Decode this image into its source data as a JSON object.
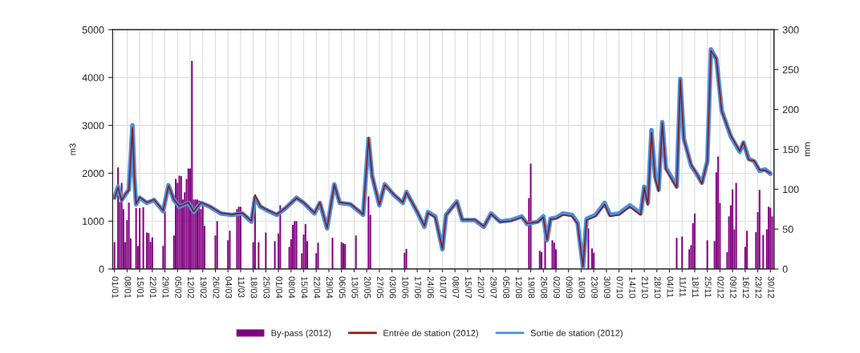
{
  "chart_data": {
    "type": "line",
    "ylabel": "m3",
    "y2label": "mm",
    "xlim": [
      "2011-12-31",
      "2013-01-01"
    ],
    "ylim": [
      0,
      5000
    ],
    "yticks": [
      0,
      1000,
      2000,
      3000,
      4000,
      5000
    ],
    "y2lim": [
      0,
      300
    ],
    "y2ticks": [
      0,
      50,
      100,
      150,
      200,
      250,
      300
    ],
    "xticks": [
      {
        "value": "2012-01-01",
        "label": "01/01"
      },
      {
        "value": "2012-01-08",
        "label": "08/01"
      },
      {
        "value": "2012-01-15",
        "label": "15/01"
      },
      {
        "value": "2012-01-22",
        "label": "22/01"
      },
      {
        "value": "2012-01-29",
        "label": "29/01"
      },
      {
        "value": "2012-02-05",
        "label": "05/02"
      },
      {
        "value": "2012-02-12",
        "label": "12/02"
      },
      {
        "value": "2012-02-19",
        "label": "19/02"
      },
      {
        "value": "2012-02-26",
        "label": "26/02"
      },
      {
        "value": "2012-03-04",
        "label": "04/03"
      },
      {
        "value": "2012-03-11",
        "label": "11/03"
      },
      {
        "value": "2012-03-18",
        "label": "18/03"
      },
      {
        "value": "2012-03-25",
        "label": "25/03"
      },
      {
        "value": "2012-04-01",
        "label": "01/04"
      },
      {
        "value": "2012-04-08",
        "label": "08/04"
      },
      {
        "value": "2012-04-15",
        "label": "15/04"
      },
      {
        "value": "2012-04-22",
        "label": "22/04"
      },
      {
        "value": "2012-04-29",
        "label": "29/04"
      },
      {
        "value": "2012-05-06",
        "label": "06/05"
      },
      {
        "value": "2012-05-13",
        "label": "13/05"
      },
      {
        "value": "2012-05-20",
        "label": "20/05"
      },
      {
        "value": "2012-05-27",
        "label": "27/05"
      },
      {
        "value": "2012-06-03",
        "label": "03/06"
      },
      {
        "value": "2012-06-10",
        "label": "10/06"
      },
      {
        "value": "2012-06-17",
        "label": "17/06"
      },
      {
        "value": "2012-06-24",
        "label": "24/06"
      },
      {
        "value": "2012-07-01",
        "label": "01/07"
      },
      {
        "value": "2012-07-08",
        "label": "08/07"
      },
      {
        "value": "2012-07-15",
        "label": "15/07"
      },
      {
        "value": "2012-07-22",
        "label": "22/07"
      },
      {
        "value": "2012-07-29",
        "label": "29/07"
      },
      {
        "value": "2012-08-05",
        "label": "05/08"
      },
      {
        "value": "2012-08-12",
        "label": "12/08"
      },
      {
        "value": "2012-08-19",
        "label": "19/08"
      },
      {
        "value": "2012-08-26",
        "label": "26/08"
      },
      {
        "value": "2012-09-02",
        "label": "02/09"
      },
      {
        "value": "2012-09-09",
        "label": "09/09"
      },
      {
        "value": "2012-09-16",
        "label": "16/09"
      },
      {
        "value": "2012-09-23",
        "label": "23/09"
      },
      {
        "value": "2012-09-30",
        "label": "30/09"
      },
      {
        "value": "2012-10-07",
        "label": "07/10"
      },
      {
        "value": "2012-10-14",
        "label": "14/10"
      },
      {
        "value": "2012-10-21",
        "label": "21/10"
      },
      {
        "value": "2012-10-28",
        "label": "28/10"
      },
      {
        "value": "2012-11-04",
        "label": "04/11"
      },
      {
        "value": "2012-11-11",
        "label": "11/11"
      },
      {
        "value": "2012-11-18",
        "label": "18/11"
      },
      {
        "value": "2012-11-25",
        "label": "25/11"
      },
      {
        "value": "2012-12-02",
        "label": "02/12"
      },
      {
        "value": "2012-12-09",
        "label": "09/12"
      },
      {
        "value": "2012-12-16",
        "label": "16/12"
      },
      {
        "value": "2012-12-23",
        "label": "23/12"
      },
      {
        "value": "2012-12-30",
        "label": "30/12"
      }
    ],
    "grid": true,
    "legend": "bottom",
    "series": [
      {
        "name": "By-pass (2012)",
        "type": "bar",
        "color": "#800080",
        "x": [
          "2012-01-01",
          "2012-01-03",
          "2012-01-04",
          "2012-01-05",
          "2012-01-06",
          "2012-01-07",
          "2012-01-08",
          "2012-01-09",
          "2012-01-10",
          "2012-01-13",
          "2012-01-14",
          "2012-01-15",
          "2012-01-17",
          "2012-01-19",
          "2012-01-20",
          "2012-01-21",
          "2012-01-22",
          "2012-01-28",
          "2012-01-29",
          "2012-02-03",
          "2012-02-04",
          "2012-02-05",
          "2012-02-06",
          "2012-02-07",
          "2012-02-08",
          "2012-02-09",
          "2012-02-10",
          "2012-02-11",
          "2012-02-12",
          "2012-02-13",
          "2012-02-14",
          "2012-02-15",
          "2012-02-16",
          "2012-02-17",
          "2012-02-18",
          "2012-02-19",
          "2012-02-20",
          "2012-02-26",
          "2012-02-27",
          "2012-03-04",
          "2012-03-05",
          "2012-03-09",
          "2012-03-10",
          "2012-03-11",
          "2012-03-18",
          "2012-03-19",
          "2012-03-21",
          "2012-03-25",
          "2012-03-30",
          "2012-04-01",
          "2012-04-02",
          "2012-04-07",
          "2012-04-08",
          "2012-04-09",
          "2012-04-10",
          "2012-04-11",
          "2012-04-14",
          "2012-04-15",
          "2012-04-16",
          "2012-04-17",
          "2012-04-22",
          "2012-04-23",
          "2012-05-01",
          "2012-05-06",
          "2012-05-07",
          "2012-05-08",
          "2012-05-14",
          "2012-05-21",
          "2012-05-22",
          "2012-06-10",
          "2012-06-11",
          "2012-08-18",
          "2012-08-19",
          "2012-08-24",
          "2012-08-25",
          "2012-08-27",
          "2012-08-31",
          "2012-09-01",
          "2012-09-02",
          "2012-09-20",
          "2012-09-22",
          "2012-09-23",
          "2012-11-08",
          "2012-11-11",
          "2012-11-15",
          "2012-11-16",
          "2012-11-17",
          "2012-11-18",
          "2012-11-25",
          "2012-11-29",
          "2012-11-30",
          "2012-12-01",
          "2012-12-02",
          "2012-12-06",
          "2012-12-07",
          "2012-12-08",
          "2012-12-09",
          "2012-12-10",
          "2012-12-11",
          "2012-12-16",
          "2012-12-17",
          "2012-12-22",
          "2012-12-23",
          "2012-12-24",
          "2012-12-26",
          "2012-12-28",
          "2012-12-29",
          "2012-12-30",
          "2012-12-31"
        ],
        "values": [
          560,
          2120,
          1400,
          1800,
          1250,
          560,
          1020,
          1390,
          640,
          1270,
          480,
          1270,
          1290,
          760,
          750,
          570,
          660,
          480,
          1200,
          700,
          1880,
          1800,
          1950,
          1940,
          1450,
          1600,
          1880,
          2100,
          2100,
          4350,
          1450,
          1450,
          1450,
          1430,
          1250,
          1350,
          900,
          700,
          1000,
          600,
          800,
          1250,
          1300,
          1300,
          560,
          1550,
          560,
          760,
          580,
          740,
          1330,
          460,
          620,
          920,
          1000,
          1000,
          330,
          720,
          940,
          580,
          330,
          550,
          650,
          560,
          540,
          520,
          700,
          1520,
          1130,
          340,
          420,
          1480,
          2200,
          380,
          350,
          690,
          600,
          550,
          410,
          850,
          430,
          340,
          650,
          680,
          410,
          500,
          960,
          1160,
          600,
          580,
          2020,
          2350,
          1380,
          350,
          1100,
          1330,
          1660,
          830,
          1800,
          460,
          800,
          770,
          1190,
          1650,
          710,
          830,
          1300,
          1280,
          1100
        ]
      },
      {
        "name": "Sortie de station (2012)",
        "color": "#4a90e2",
        "x": [
          "2012-01-01",
          "2012-01-03",
          "2012-01-05",
          "2012-01-07",
          "2012-01-09",
          "2012-01-11",
          "2012-01-12",
          "2012-01-13",
          "2012-01-15",
          "2012-01-19",
          "2012-01-23",
          "2012-01-28",
          "2012-01-31",
          "2012-02-03",
          "2012-02-06",
          "2012-02-11",
          "2012-02-14",
          "2012-02-18",
          "2012-02-23",
          "2012-02-29",
          "2012-03-06",
          "2012-03-12",
          "2012-03-17",
          "2012-03-19",
          "2012-03-22",
          "2012-03-25",
          "2012-03-31",
          "2012-04-05",
          "2012-04-11",
          "2012-04-15",
          "2012-04-21",
          "2012-04-24",
          "2012-04-28",
          "2012-05-02",
          "2012-05-05",
          "2012-05-11",
          "2012-05-18",
          "2012-05-21",
          "2012-05-23",
          "2012-05-27",
          "2012-05-30",
          "2012-06-04",
          "2012-06-09",
          "2012-06-11",
          "2012-06-17",
          "2012-06-21",
          "2012-06-23",
          "2012-06-27",
          "2012-07-01",
          "2012-07-03",
          "2012-07-09",
          "2012-07-12",
          "2012-07-19",
          "2012-07-24",
          "2012-07-28",
          "2012-08-02",
          "2012-08-08",
          "2012-08-14",
          "2012-08-17",
          "2012-08-23",
          "2012-08-26",
          "2012-08-28",
          "2012-08-30",
          "2012-09-02",
          "2012-09-06",
          "2012-09-11",
          "2012-09-14",
          "2012-09-17",
          "2012-09-19",
          "2012-09-24",
          "2012-09-29",
          "2012-10-02",
          "2012-10-07",
          "2012-10-13",
          "2012-10-19",
          "2012-10-21",
          "2012-10-23",
          "2012-10-25",
          "2012-10-27",
          "2012-10-29",
          "2012-10-31",
          "2012-11-02",
          "2012-11-04",
          "2012-11-08",
          "2012-11-10",
          "2012-11-12",
          "2012-11-16",
          "2012-11-19",
          "2012-11-22",
          "2012-11-25",
          "2012-11-27",
          "2012-11-30",
          "2012-12-03",
          "2012-12-08",
          "2012-12-13",
          "2012-12-15",
          "2012-12-18",
          "2012-12-21",
          "2012-12-24",
          "2012-12-27",
          "2012-12-30"
        ],
        "values": [
          1490,
          1720,
          1440,
          1550,
          1660,
          3000,
          1940,
          1350,
          1490,
          1380,
          1440,
          1210,
          1750,
          1440,
          1300,
          1380,
          1190,
          1380,
          1300,
          1160,
          1130,
          1160,
          990,
          1490,
          1300,
          1240,
          1130,
          1270,
          1490,
          1380,
          1160,
          1380,
          850,
          1770,
          1380,
          1350,
          1130,
          2720,
          1940,
          1330,
          1770,
          1550,
          1380,
          1610,
          1190,
          880,
          1190,
          1100,
          410,
          1130,
          1410,
          1020,
          1020,
          880,
          1160,
          990,
          1020,
          1100,
          940,
          990,
          1100,
          600,
          1050,
          1070,
          1160,
          1130,
          960,
          40,
          1050,
          1130,
          1380,
          1130,
          1160,
          1330,
          1160,
          1720,
          1380,
          2900,
          1940,
          1660,
          3070,
          2110,
          1990,
          1720,
          3970,
          2720,
          2160,
          1990,
          1800,
          2250,
          4590,
          4390,
          3310,
          2770,
          2450,
          2640,
          2300,
          2250,
          2050,
          2080,
          1990
        ]
      },
      {
        "name": "Entrée de station (2012)",
        "color": "#8b1a1a",
        "x": [
          "2012-01-01",
          "2012-01-03",
          "2012-01-05",
          "2012-01-07",
          "2012-01-09",
          "2012-01-11",
          "2012-01-12",
          "2012-01-13",
          "2012-01-15",
          "2012-01-19",
          "2012-01-23",
          "2012-01-28",
          "2012-01-31",
          "2012-02-03",
          "2012-02-06",
          "2012-02-11",
          "2012-02-14",
          "2012-02-18",
          "2012-02-23",
          "2012-02-29",
          "2012-03-06",
          "2012-03-12",
          "2012-03-17",
          "2012-03-19",
          "2012-03-22",
          "2012-03-25",
          "2012-03-31",
          "2012-04-05",
          "2012-04-11",
          "2012-04-15",
          "2012-04-21",
          "2012-04-24",
          "2012-04-28",
          "2012-05-02",
          "2012-05-05",
          "2012-05-11",
          "2012-05-18",
          "2012-05-21",
          "2012-05-23",
          "2012-05-27",
          "2012-05-30",
          "2012-06-04",
          "2012-06-09",
          "2012-06-11",
          "2012-06-17",
          "2012-06-21",
          "2012-06-23",
          "2012-06-27",
          "2012-07-01",
          "2012-07-03",
          "2012-07-09",
          "2012-07-12",
          "2012-07-19",
          "2012-07-24",
          "2012-07-28",
          "2012-08-02",
          "2012-08-08",
          "2012-08-14",
          "2012-08-17",
          "2012-08-23",
          "2012-08-26",
          "2012-08-28",
          "2012-08-30",
          "2012-09-02",
          "2012-09-06",
          "2012-09-11",
          "2012-09-14",
          "2012-09-17",
          "2012-09-19",
          "2012-09-24",
          "2012-09-29",
          "2012-10-02",
          "2012-10-07",
          "2012-10-13",
          "2012-10-19",
          "2012-10-21",
          "2012-10-23",
          "2012-10-25",
          "2012-10-27",
          "2012-10-29",
          "2012-10-31",
          "2012-11-02",
          "2012-11-04",
          "2012-11-08",
          "2012-11-10",
          "2012-11-12",
          "2012-11-16",
          "2012-11-19",
          "2012-11-22",
          "2012-11-25",
          "2012-11-27",
          "2012-11-30",
          "2012-12-03",
          "2012-12-08",
          "2012-12-13",
          "2012-12-15",
          "2012-12-18",
          "2012-12-21",
          "2012-12-24",
          "2012-12-27",
          "2012-12-30"
        ],
        "values": [
          1480,
          1700,
          1430,
          1560,
          1650,
          2950,
          1950,
          1360,
          1500,
          1390,
          1450,
          1220,
          1740,
          1450,
          1310,
          1390,
          1200,
          1390,
          1310,
          1170,
          1140,
          1170,
          1000,
          1550,
          1310,
          1250,
          1140,
          1280,
          1480,
          1390,
          1170,
          1390,
          860,
          1760,
          1390,
          1360,
          1140,
          2740,
          1950,
          1340,
          1760,
          1560,
          1390,
          1600,
          1200,
          900,
          1170,
          1080,
          420,
          1120,
          1400,
          1030,
          1030,
          890,
          1150,
          980,
          1000,
          1080,
          950,
          980,
          1080,
          610,
          1040,
          1050,
          1130,
          1100,
          940,
          50,
          1020,
          1100,
          1350,
          1100,
          1130,
          1300,
          1130,
          1700,
          1330,
          2850,
          1900,
          1620,
          3050,
          2080,
          1950,
          1700,
          3950,
          2700,
          2180,
          2000,
          1780,
          2250,
          4560,
          4400,
          3300,
          2790,
          2460,
          2650,
          2280,
          2260,
          2070,
          2060,
          2000
        ]
      }
    ]
  }
}
